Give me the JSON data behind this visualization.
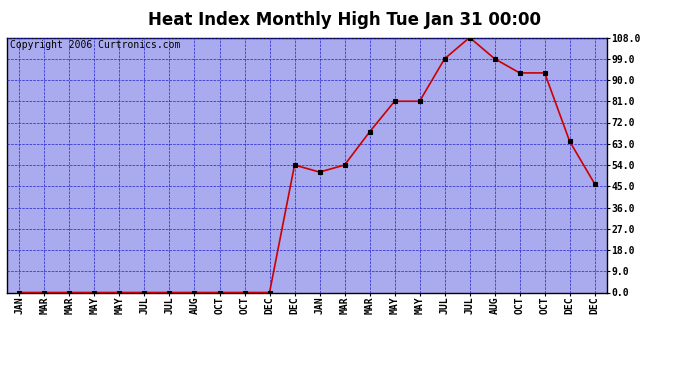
{
  "title": "Heat Index Monthly High Tue Jan 31 00:00",
  "copyright": "Copyright 2006 Curtronics.com",
  "x_labels": [
    "JAN",
    "MAR",
    "MAR",
    "MAY",
    "MAY",
    "JUL",
    "JUL",
    "AUG",
    "OCT",
    "OCT",
    "DEC",
    "DEC",
    "JAN",
    "MAR",
    "MAR",
    "MAY",
    "MAY",
    "JUL",
    "JUL",
    "AUG",
    "OCT",
    "OCT",
    "DEC",
    "DEC"
  ],
  "y_values": [
    0.0,
    0.0,
    0.0,
    0.0,
    0.0,
    0.0,
    0.0,
    0.0,
    0.0,
    0.0,
    0.0,
    54.0,
    51.0,
    54.0,
    68.0,
    81.0,
    81.0,
    99.0,
    108.0,
    99.0,
    93.0,
    93.0,
    64.0,
    46.0
  ],
  "ylim": [
    0.0,
    108.0
  ],
  "yticks": [
    0.0,
    9.0,
    18.0,
    27.0,
    36.0,
    45.0,
    54.0,
    63.0,
    72.0,
    81.0,
    90.0,
    99.0,
    108.0
  ],
  "line_color": "#cc0000",
  "marker_color": "#000000",
  "bg_color": "#ffffff",
  "plot_bg": "#aaaaee",
  "grid_color": "#2222cc",
  "title_fontsize": 12,
  "copyright_fontsize": 7,
  "tick_fontsize": 7,
  "border_color": "#000000"
}
